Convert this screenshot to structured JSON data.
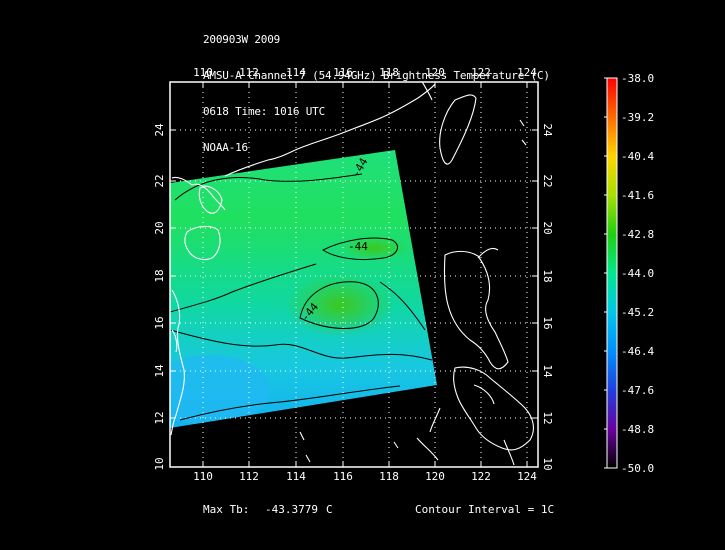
{
  "header": {
    "line1": "200903W 2009",
    "line2": "AMSU-A Channel 7 (54.94GHz) Brightness Temperature (C)",
    "line3": "0618 Time: 1016 UTC",
    "line4": "NOAA-16"
  },
  "map": {
    "lon_ticks": [
      "110",
      "112",
      "114",
      "116",
      "118",
      "120",
      "122",
      "124"
    ],
    "lat_ticks": [
      "12",
      "14",
      "16",
      "18",
      "20",
      "22",
      "24"
    ],
    "lat_bottom_label": "10",
    "lon_range": [
      108.3,
      124.6
    ],
    "lat_range": [
      10.0,
      26.4
    ],
    "contour_labels": [
      "-44",
      "-44",
      "-44"
    ]
  },
  "colorbar": {
    "labels": [
      "-38.0",
      "-39.2",
      "-40.4",
      "-41.6",
      "-42.8",
      "-44.0",
      "-45.2",
      "-46.4",
      "-47.6",
      "-48.8",
      "-50.0"
    ],
    "colors": [
      "#ff0000",
      "#ff6a00",
      "#ffd400",
      "#a8e000",
      "#20d010",
      "#00e890",
      "#00c8e8",
      "#0090ff",
      "#2040e0",
      "#6a00a0",
      "#000000"
    ]
  },
  "footer": {
    "max_tb_label": "Max Tb:",
    "max_tb_value": "-43.3779",
    "max_tb_unit": "C",
    "contour_interval": "Contour Interval = 1C"
  }
}
